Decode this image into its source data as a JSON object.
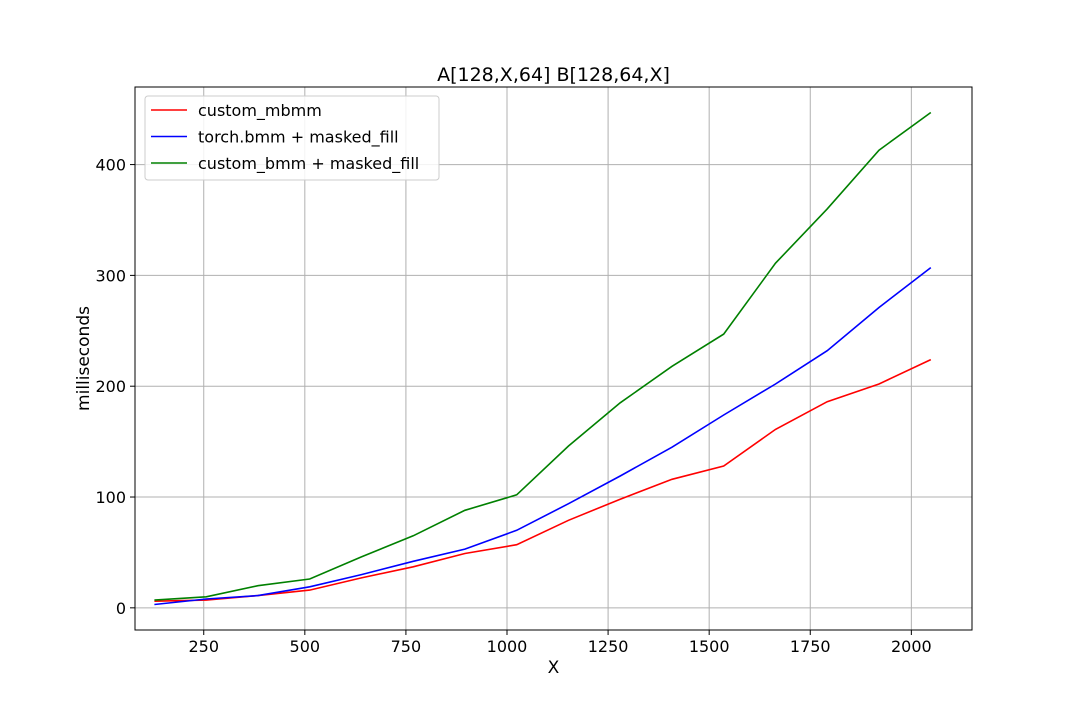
{
  "chart_data": {
    "type": "line",
    "title": "A[128,X,64] B[128,64,X]",
    "xlabel": "X",
    "ylabel": "milliseconds",
    "xlim": [
      80,
      2150
    ],
    "ylim": [
      -20,
      470
    ],
    "xticks": [
      250,
      500,
      750,
      1000,
      1250,
      1500,
      1750,
      2000
    ],
    "yticks": [
      0,
      100,
      200,
      300,
      400
    ],
    "grid": true,
    "legend_position": "top-left",
    "x": [
      128,
      256,
      384,
      512,
      640,
      768,
      896,
      1024,
      1152,
      1280,
      1408,
      1536,
      1664,
      1792,
      1920,
      2048
    ],
    "series": [
      {
        "name": "custom_mbmm",
        "color": "#ff0000",
        "values": [
          6,
          7,
          11,
          16,
          27,
          37,
          49,
          57,
          79,
          98,
          116,
          128,
          161,
          186,
          202,
          224
        ]
      },
      {
        "name": "torch.bmm + masked_fill",
        "color": "#0000ff",
        "values": [
          3,
          8,
          11,
          19,
          30,
          42,
          53,
          70,
          94,
          119,
          145,
          174,
          202,
          232,
          271,
          307
        ]
      },
      {
        "name": "custom_bmm + masked_fill",
        "color": "#008000",
        "values": [
          7,
          10,
          20,
          26,
          46,
          65,
          88,
          102,
          146,
          185,
          218,
          247,
          311,
          360,
          413,
          447
        ]
      }
    ]
  }
}
